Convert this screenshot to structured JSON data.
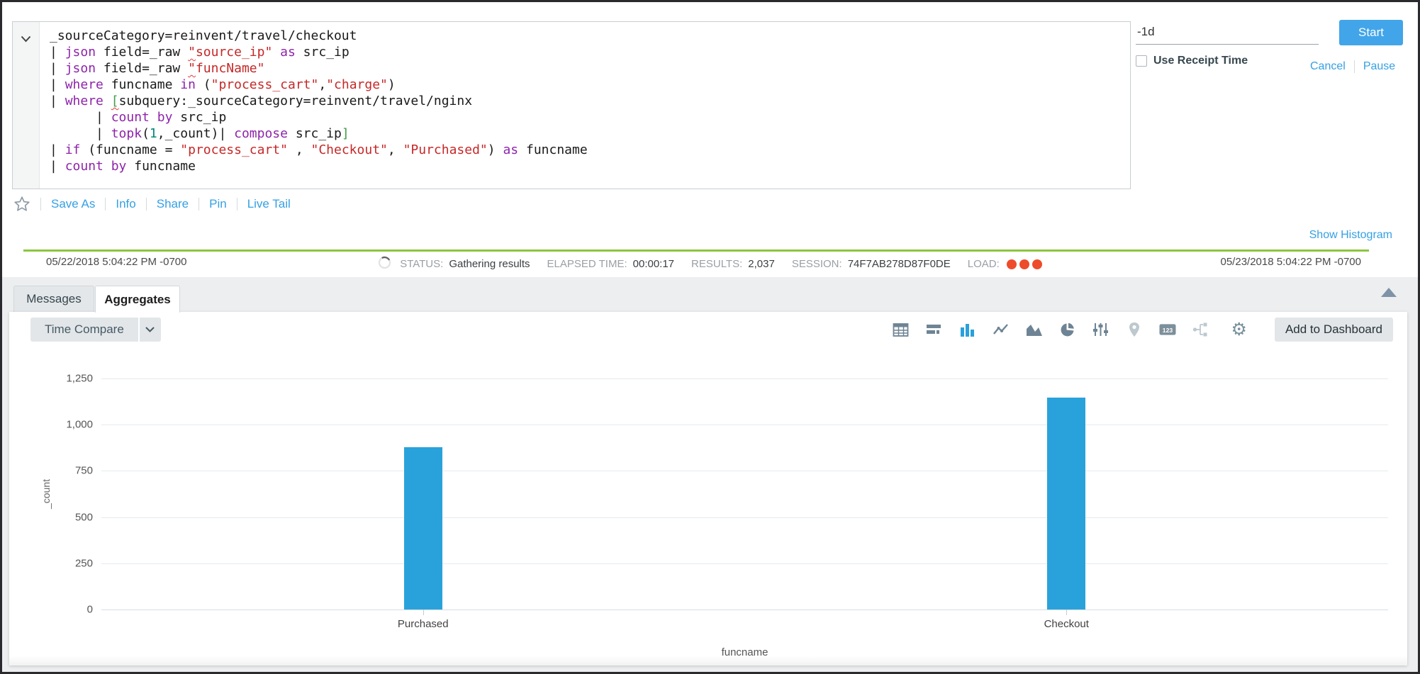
{
  "search_bar": {
    "time_range": "-1d",
    "start": "Start",
    "use_receipt_time": "Use Receipt Time",
    "cancel": "Cancel",
    "pause": "Pause"
  },
  "query": {
    "lines": [
      [
        [
          "p",
          "_sourceCategory=reinvent/travel/checkout"
        ]
      ],
      [
        [
          "p",
          "| "
        ],
        [
          "k",
          "json"
        ],
        [
          "p",
          " field=_raw "
        ],
        [
          "sq",
          "\""
        ],
        [
          "s",
          "source_ip\""
        ],
        [
          "p",
          " "
        ],
        [
          "k",
          "as"
        ],
        [
          "p",
          " src_ip"
        ]
      ],
      [
        [
          "p",
          "| "
        ],
        [
          "k",
          "json"
        ],
        [
          "p",
          " field=_raw "
        ],
        [
          "sq",
          "\""
        ],
        [
          "s",
          "funcName\""
        ]
      ],
      [
        [
          "p",
          "| "
        ],
        [
          "k",
          "where"
        ],
        [
          "p",
          " funcname "
        ],
        [
          "k",
          "in"
        ],
        [
          "p",
          " ("
        ],
        [
          "s",
          "\"process_cart\""
        ],
        [
          "p",
          ","
        ],
        [
          "s",
          "\"charge\""
        ],
        [
          "p",
          ")"
        ]
      ],
      [
        [
          "p",
          "| "
        ],
        [
          "k",
          "where"
        ],
        [
          "p",
          " "
        ],
        [
          "bq",
          "["
        ],
        [
          "p",
          "subquery:_sourceCategory=reinvent/travel/nginx"
        ]
      ],
      [
        [
          "p",
          "      | "
        ],
        [
          "k",
          "count"
        ],
        [
          "p",
          " "
        ],
        [
          "k",
          "by"
        ],
        [
          "p",
          " src_ip"
        ]
      ],
      [
        [
          "p",
          "      | "
        ],
        [
          "k",
          "topk"
        ],
        [
          "p",
          "("
        ],
        [
          "n",
          "1"
        ],
        [
          "p",
          ",_count)| "
        ],
        [
          "k",
          "compose"
        ],
        [
          "p",
          " src_ip"
        ],
        [
          "b",
          "]"
        ]
      ],
      [
        [
          "p",
          "| "
        ],
        [
          "k",
          "if"
        ],
        [
          "p",
          " (funcname = "
        ],
        [
          "s",
          "\"process_cart\""
        ],
        [
          "p",
          " , "
        ],
        [
          "s",
          "\"Checkout\""
        ],
        [
          "p",
          ", "
        ],
        [
          "s",
          "\"Purchased\""
        ],
        [
          "p",
          ") "
        ],
        [
          "k",
          "as"
        ],
        [
          "p",
          " funcname"
        ]
      ],
      [
        [
          "p",
          "| "
        ],
        [
          "k",
          "count"
        ],
        [
          "p",
          " "
        ],
        [
          "k",
          "by"
        ],
        [
          "p",
          " funcname"
        ]
      ]
    ]
  },
  "actions": {
    "save_as": "Save As",
    "info": "Info",
    "share": "Share",
    "pin": "Pin",
    "live_tail": "Live Tail"
  },
  "status_bar": {
    "show_histogram": "Show Histogram",
    "start_time": "05/22/2018 5:04:22 PM -0700",
    "end_time": "05/23/2018 5:04:22 PM -0700",
    "status_label": "STATUS:",
    "status_value": "Gathering results",
    "elapsed_label": "ELAPSED TIME:",
    "elapsed_value": "00:00:17",
    "results_label": "RESULTS:",
    "results_value": "2,037",
    "session_label": "SESSION:",
    "session_value": "74F7AB278D87F0DE",
    "load_label": "LOAD:",
    "load_dots": 3
  },
  "tabs": {
    "messages": "Messages",
    "aggregates": "Aggregates",
    "active": "Aggregates"
  },
  "results_toolbar": {
    "time_compare": "Time Compare",
    "add_to_dashboard": "Add to Dashboard",
    "chart_icons": [
      "table-icon",
      "horizontal-bar-chart-icon",
      "column-chart-icon",
      "line-chart-icon",
      "area-chart-icon",
      "pie-chart-icon",
      "sliders-icon",
      "map-pin-icon",
      "numeric-display-icon",
      "flow-diagram-icon",
      "settings-gear-icon"
    ],
    "active_chart_icon": "column-chart-icon",
    "disabled_chart_icons": [
      "map-pin-icon",
      "flow-diagram-icon"
    ]
  },
  "chart_data": {
    "type": "bar",
    "title": "",
    "categories": [
      "Purchased",
      "Checkout"
    ],
    "values": [
      880,
      1145
    ],
    "xlabel": "funcname",
    "ylabel": "_count",
    "ylim": [
      0,
      1250
    ],
    "yticks": [
      0,
      250,
      500,
      750,
      1000,
      1250
    ],
    "grid": true,
    "legend": "none",
    "bar_color": "#29A2DB"
  },
  "colors": {
    "accent_blue": "#35A0E4",
    "start_button_blue": "#42A5E9",
    "bar_blue": "#29A2DB",
    "histogram_green": "#8CC640",
    "load_dot_red": "#EE4B2B",
    "keyword_purple": "#8E24AA",
    "string_red": "#C62828",
    "bracket_green": "#43A047",
    "number_teal": "#00897B"
  }
}
